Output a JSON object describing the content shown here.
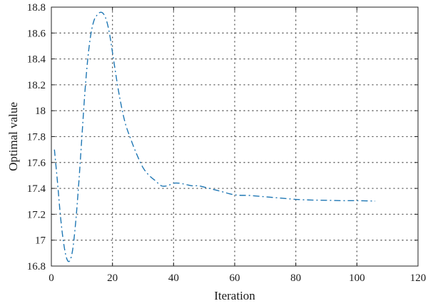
{
  "chart_data": {
    "type": "line",
    "title": "",
    "xlabel": "Iteration",
    "ylabel": "Optimal value",
    "xlim": [
      0,
      120
    ],
    "ylim": [
      16.8,
      18.8
    ],
    "x_ticks": [
      0,
      20,
      40,
      60,
      80,
      100,
      120
    ],
    "y_ticks": [
      16.8,
      17,
      17.2,
      17.4,
      17.6,
      17.8,
      18,
      18.2,
      18.4,
      18.6,
      18.8
    ],
    "x_tick_labels": [
      "0",
      "20",
      "40",
      "60",
      "80",
      "100",
      "120"
    ],
    "y_tick_labels": [
      "16.8",
      "17",
      "17.2",
      "17.4",
      "17.6",
      "17.8",
      "18",
      "18.2",
      "18.4",
      "18.6",
      "18.8"
    ],
    "grid": true,
    "legend": false,
    "series": [
      {
        "color": "#1f77b4",
        "style": "dash-dot",
        "x": [
          1,
          2,
          3,
          4,
          5,
          6,
          7,
          8,
          9,
          10,
          11,
          12,
          13,
          14,
          15,
          16,
          17,
          18,
          19,
          20,
          22,
          24,
          26,
          28,
          30,
          32,
          34,
          36,
          38,
          40,
          42,
          44,
          46,
          48,
          50,
          55,
          60,
          65,
          70,
          75,
          80,
          85,
          90,
          95,
          100,
          106
        ],
        "y": [
          17.7,
          17.45,
          17.18,
          16.98,
          16.86,
          16.84,
          16.93,
          17.15,
          17.45,
          17.8,
          18.15,
          18.42,
          18.6,
          18.7,
          18.74,
          18.76,
          18.75,
          18.7,
          18.6,
          18.45,
          18.15,
          17.92,
          17.78,
          17.66,
          17.56,
          17.5,
          17.46,
          17.42,
          17.42,
          17.44,
          17.44,
          17.43,
          17.42,
          17.42,
          17.41,
          17.38,
          17.35,
          17.345,
          17.335,
          17.325,
          17.315,
          17.31,
          17.308,
          17.305,
          17.305,
          17.302
        ]
      }
    ]
  }
}
